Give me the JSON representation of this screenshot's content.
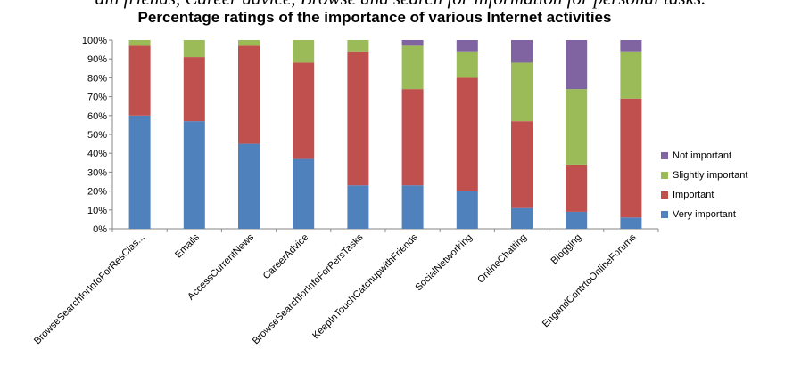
{
  "caption": "ain friends, Career advice, Browse and search for information for personal tasks.",
  "chart_data": {
    "type": "bar",
    "stacked": true,
    "title": "Percentage ratings of the importance of various Internet activities",
    "categories": [
      "BrowseSearchforInfoForResClas...",
      "Emails",
      "AccessCurrentNews",
      "CareerAdvice",
      "BrowseSearchforInfoForPersTasks",
      "KeepInTouchCatchupwithFriends",
      "SocialNetworking",
      "OnlineChatting",
      "Blogging",
      "EngandContrtoOnlineForums"
    ],
    "series": [
      {
        "name": "Very important",
        "color": "#4F81BD",
        "values": [
          60,
          57,
          45,
          37,
          23,
          23,
          20,
          11,
          9,
          6
        ]
      },
      {
        "name": "Important",
        "color": "#C0504D",
        "values": [
          37,
          34,
          52,
          51,
          71,
          51,
          60,
          46,
          25,
          63
        ]
      },
      {
        "name": "Slightly important",
        "color": "#9BBB59",
        "values": [
          3,
          9,
          3,
          12,
          6,
          23,
          14,
          31,
          40,
          25
        ]
      },
      {
        "name": "Not important",
        "color": "#8064A2",
        "values": [
          0,
          0,
          0,
          0,
          0,
          3,
          6,
          12,
          26,
          6
        ]
      }
    ],
    "ylim": [
      0,
      100
    ],
    "yticks": [
      "0%",
      "10%",
      "20%",
      "30%",
      "40%",
      "50%",
      "60%",
      "70%",
      "80%",
      "90%",
      "100%"
    ],
    "grid": false,
    "legend_position": "right",
    "legend_order": [
      "Not important",
      "Slightly important",
      "Important",
      "Very important"
    ]
  }
}
